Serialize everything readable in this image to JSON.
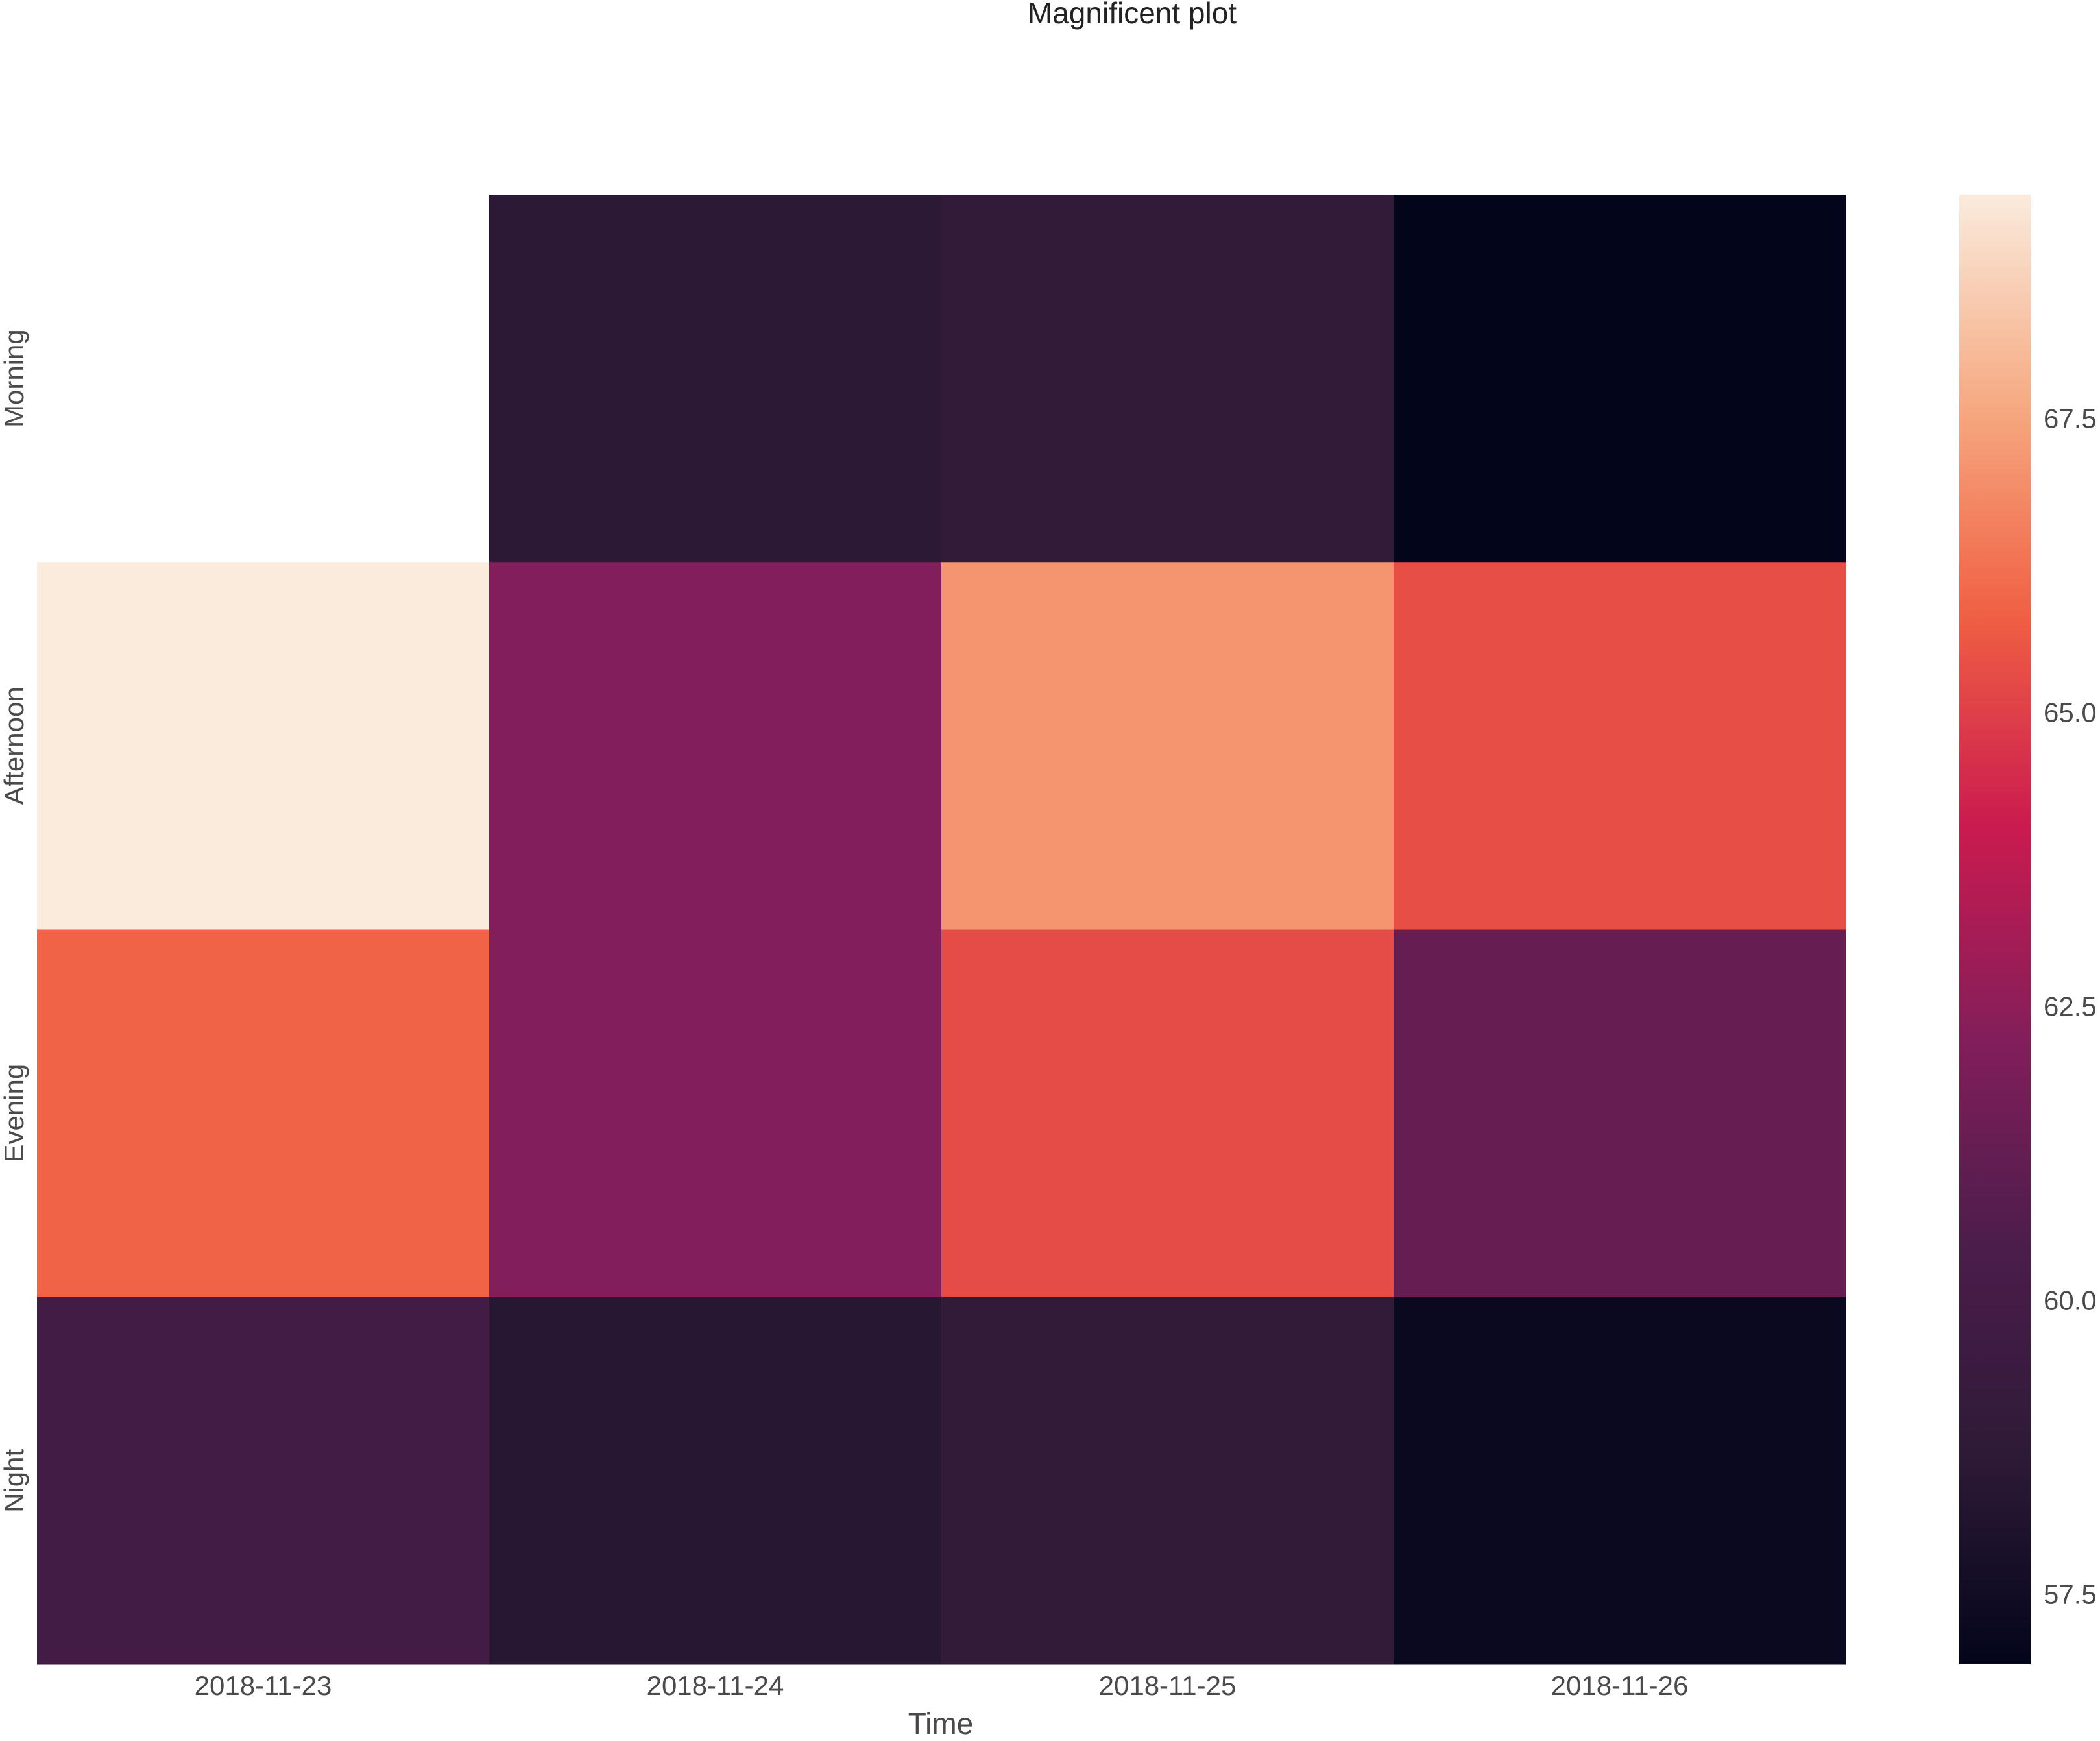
{
  "chart_data": {
    "type": "heatmap",
    "title": "Magnificent plot",
    "xlabel": "Time",
    "ylabel": "",
    "x_categories": [
      "2018-11-23",
      "2018-11-24",
      "2018-11-25",
      "2018-11-26"
    ],
    "y_categories": [
      "Morning",
      "Afternoon",
      "Evening",
      "Night"
    ],
    "values": [
      [
        null,
        58.6,
        58.9,
        56.9
      ],
      [
        69.4,
        62.2,
        67.1,
        65.4
      ],
      [
        65.9,
        62.2,
        65.3,
        61.3
      ],
      [
        59.9,
        58.4,
        58.9,
        57.2
      ]
    ],
    "colorbar": {
      "range": [
        56.9,
        69.4
      ],
      "ticks": [
        "57.5",
        "60.0",
        "62.5",
        "65.0",
        "67.5"
      ],
      "colormap": "rocket",
      "stops": [
        "#03051a",
        "#2e1a37",
        "#4c1d4b",
        "#841e5a",
        "#cb1b4f",
        "#f06043",
        "#f6aa82",
        "#faebdd"
      ]
    },
    "grid": false,
    "colorbar_placement": "right"
  }
}
